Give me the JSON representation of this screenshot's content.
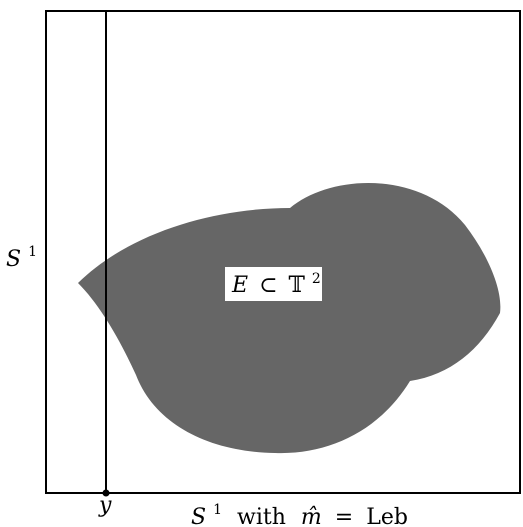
{
  "colors": {
    "background": "#ffffff",
    "frame": "#000000",
    "region_fill": "#666666",
    "label_box": "#ffffff",
    "text": "#000000"
  },
  "labels": {
    "left_axis_base": "S",
    "left_axis_exp": "1",
    "region_var": "E",
    "region_subset": "⊂",
    "region_torus": "𝕋",
    "region_exp": "2",
    "point_label": "y",
    "bottom_axis_base": "S",
    "bottom_axis_exp": "1",
    "bottom_axis_with": "with",
    "bottom_axis_measure": "m̂",
    "bottom_axis_equals": "=",
    "bottom_axis_leb": "Leb"
  }
}
